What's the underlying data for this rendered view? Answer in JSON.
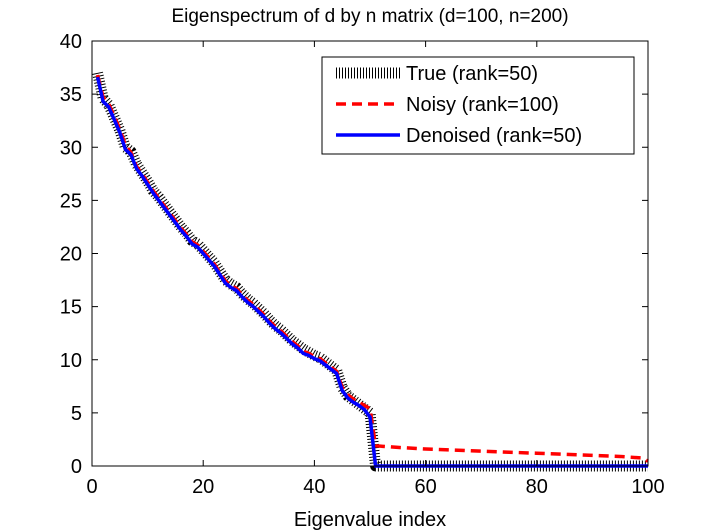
{
  "chart_data": {
    "type": "line",
    "title": "Eigenspectrum of d by n matrix (d=100, n=200)",
    "xlabel": "Eigenvalue index",
    "ylabel": "",
    "xlim": [
      0,
      100
    ],
    "ylim": [
      0,
      40
    ],
    "xticks": [
      0,
      20,
      40,
      60,
      80,
      100
    ],
    "yticks": [
      0,
      5,
      10,
      15,
      20,
      25,
      30,
      35,
      40
    ],
    "grid": false,
    "legend_position": "top-right",
    "series": [
      {
        "name": "True (rank=50)",
        "color": "#000000",
        "style": "dotted",
        "x": [
          1,
          2,
          3,
          4,
          5,
          6,
          7,
          8,
          9,
          10,
          11,
          12,
          13,
          14,
          15,
          16,
          17,
          18,
          19,
          20,
          21,
          22,
          23,
          24,
          25,
          26,
          27,
          28,
          29,
          30,
          31,
          32,
          33,
          34,
          35,
          36,
          37,
          38,
          39,
          40,
          41,
          42,
          43,
          44,
          45,
          46,
          47,
          48,
          49,
          50,
          51,
          52,
          55,
          60,
          65,
          70,
          75,
          80,
          85,
          90,
          95,
          100
        ],
        "y": [
          37.0,
          34.6,
          34.0,
          32.8,
          31.6,
          30.0,
          29.6,
          28.4,
          27.6,
          26.8,
          25.9,
          25.3,
          24.6,
          23.9,
          23.2,
          22.5,
          21.9,
          21.2,
          20.9,
          20.3,
          19.7,
          19.1,
          18.3,
          17.5,
          17.1,
          16.8,
          16.2,
          15.7,
          15.3,
          14.8,
          14.3,
          13.7,
          13.2,
          12.8,
          12.3,
          11.8,
          11.4,
          11.0,
          10.7,
          10.4,
          10.2,
          9.8,
          9.4,
          9.0,
          7.4,
          6.6,
          6.2,
          5.8,
          5.4,
          5.0,
          0.0,
          0.0,
          0.0,
          0.0,
          0.0,
          0.0,
          0.0,
          0.0,
          0.0,
          0.0,
          0.0,
          0.0
        ]
      },
      {
        "name": "Noisy (rank=100)",
        "color": "#ff0000",
        "style": "dashed",
        "x": [
          1,
          2,
          3,
          4,
          5,
          6,
          7,
          8,
          9,
          10,
          11,
          12,
          13,
          14,
          15,
          16,
          17,
          18,
          19,
          20,
          21,
          22,
          23,
          24,
          25,
          26,
          27,
          28,
          29,
          30,
          31,
          32,
          33,
          34,
          35,
          36,
          37,
          38,
          39,
          40,
          41,
          42,
          43,
          44,
          45,
          46,
          47,
          48,
          49,
          50,
          51,
          55,
          60,
          65,
          70,
          75,
          80,
          85,
          90,
          95,
          99,
          100
        ],
        "y": [
          36.8,
          34.7,
          34.1,
          32.9,
          31.7,
          30.2,
          29.5,
          28.2,
          27.5,
          26.7,
          25.9,
          25.2,
          24.5,
          23.8,
          23.1,
          22.4,
          21.8,
          21.1,
          20.8,
          20.2,
          19.6,
          19.0,
          18.2,
          17.4,
          17.0,
          16.7,
          16.1,
          15.6,
          15.2,
          14.7,
          14.2,
          13.6,
          13.1,
          12.7,
          12.2,
          11.7,
          11.3,
          10.8,
          10.6,
          10.3,
          10.1,
          9.7,
          9.3,
          8.9,
          7.4,
          6.7,
          6.3,
          6.0,
          5.7,
          5.4,
          1.9,
          1.75,
          1.6,
          1.5,
          1.4,
          1.3,
          1.2,
          1.1,
          1.0,
          0.9,
          0.75,
          0.45
        ]
      },
      {
        "name": "Denoised (rank=50)",
        "color": "#0000ff",
        "style": "solid",
        "x": [
          1,
          2,
          3,
          4,
          5,
          6,
          7,
          8,
          9,
          10,
          11,
          12,
          13,
          14,
          15,
          16,
          17,
          18,
          19,
          20,
          21,
          22,
          23,
          24,
          25,
          26,
          27,
          28,
          29,
          30,
          31,
          32,
          33,
          34,
          35,
          36,
          37,
          38,
          39,
          40,
          41,
          42,
          43,
          44,
          45,
          46,
          47,
          48,
          49,
          50,
          51,
          52,
          55,
          60,
          65,
          70,
          75,
          80,
          85,
          90,
          95,
          100
        ],
        "y": [
          36.6,
          34.3,
          33.8,
          32.6,
          31.4,
          29.8,
          29.3,
          28.0,
          27.3,
          26.5,
          25.7,
          25.0,
          24.3,
          23.6,
          22.9,
          22.2,
          21.6,
          20.9,
          20.6,
          20.0,
          19.4,
          18.8,
          18.0,
          17.2,
          16.8,
          16.5,
          15.9,
          15.4,
          15.0,
          14.5,
          14.0,
          13.4,
          12.9,
          12.5,
          12.0,
          11.5,
          11.1,
          10.6,
          10.4,
          10.1,
          9.9,
          9.5,
          9.1,
          8.7,
          7.1,
          6.4,
          6.0,
          5.7,
          5.3,
          4.6,
          0.0,
          0.0,
          0.0,
          0.0,
          0.0,
          0.0,
          0.0,
          0.0,
          0.0,
          0.0,
          0.0,
          0.0
        ]
      }
    ]
  }
}
